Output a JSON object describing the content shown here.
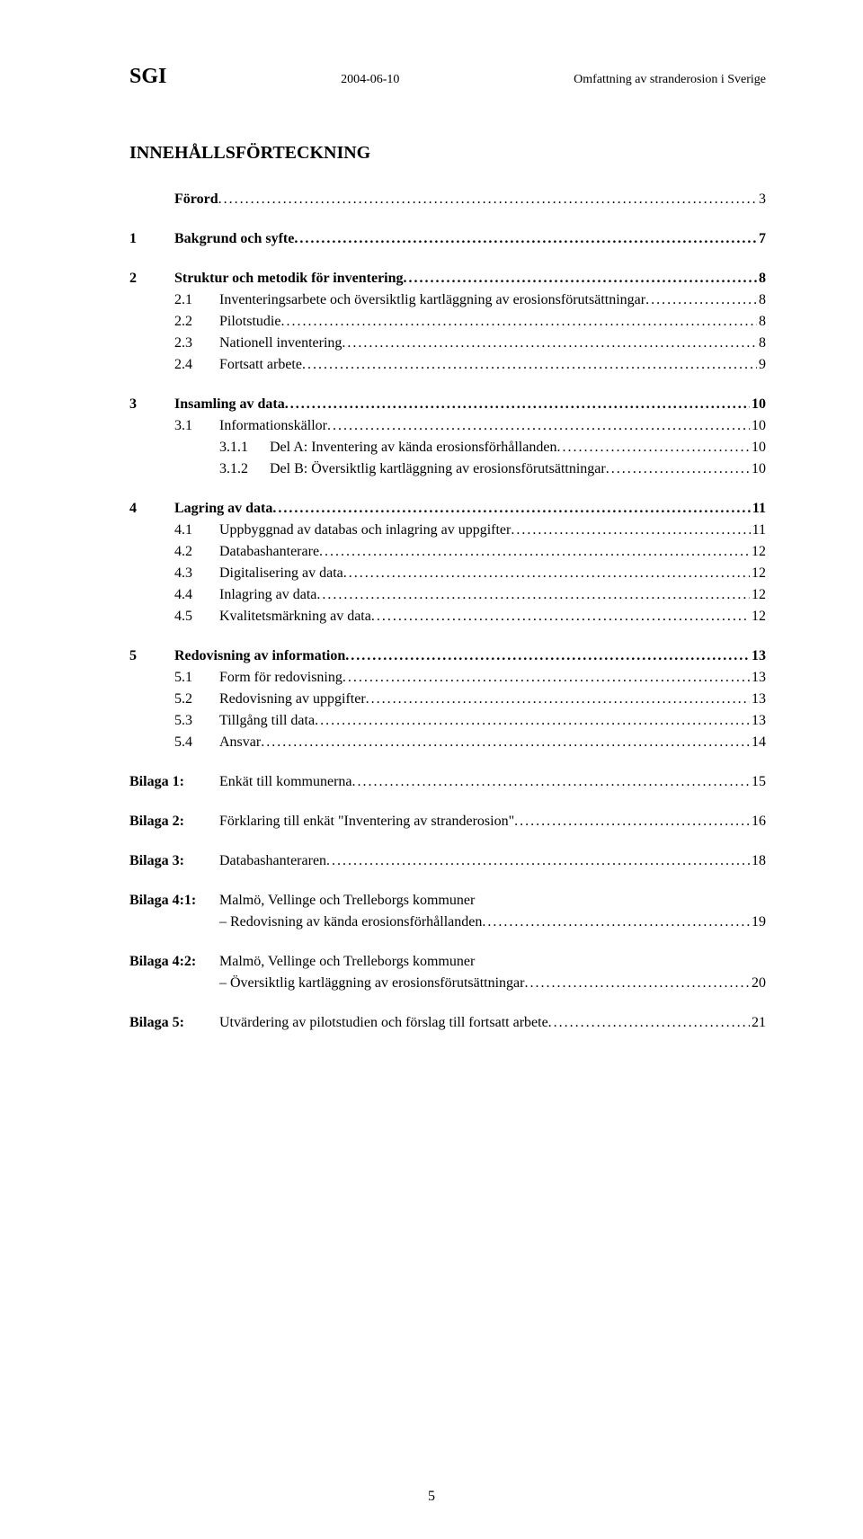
{
  "header": {
    "left": "SGI",
    "mid": "2004-06-10",
    "right": "Omfattning av stranderosion i Sverige"
  },
  "title": "INNEHÅLLSFÖRTECKNING",
  "toc": {
    "forord": {
      "label": "Förord",
      "page": "3"
    },
    "s1": {
      "num": "1",
      "label": "Bakgrund och syfte",
      "page": "7"
    },
    "s2": {
      "num": "2",
      "label": "Struktur och metodik för inventering",
      "page": "8",
      "sub": [
        {
          "num": "2.1",
          "label": "Inventeringsarbete och översiktlig kartläggning av erosionsförutsättningar",
          "page": "8"
        },
        {
          "num": "2.2",
          "label": "Pilotstudie",
          "page": "8"
        },
        {
          "num": "2.3",
          "label": "Nationell inventering",
          "page": "8"
        },
        {
          "num": "2.4",
          "label": "Fortsatt arbete",
          "page": "9"
        }
      ]
    },
    "s3": {
      "num": "3",
      "label": "Insamling av data",
      "page": "10",
      "sub": [
        {
          "num": "3.1",
          "label": "Informationskällor",
          "page": "10",
          "subsub": [
            {
              "num": "3.1.1",
              "label": "Del A: Inventering av kända erosionsförhållanden",
              "page": "10"
            },
            {
              "num": "3.1.2",
              "label": "Del B: Översiktlig kartläggning av erosionsförutsättningar",
              "page": "10"
            }
          ]
        }
      ]
    },
    "s4": {
      "num": "4",
      "label": "Lagring av data",
      "page": "11",
      "sub": [
        {
          "num": "4.1",
          "label": "Uppbyggnad av databas och inlagring av uppgifter",
          "page": "11"
        },
        {
          "num": "4.2",
          "label": "Databashanterare",
          "page": "12"
        },
        {
          "num": "4.3",
          "label": "Digitalisering av data",
          "page": "12"
        },
        {
          "num": "4.4",
          "label": "Inlagring av data",
          "page": "12"
        },
        {
          "num": "4.5",
          "label": "Kvalitetsmärkning av data",
          "page": "12"
        }
      ]
    },
    "s5": {
      "num": "5",
      "label": "Redovisning av information",
      "page": "13",
      "sub": [
        {
          "num": "5.1",
          "label": "Form för redovisning",
          "page": "13"
        },
        {
          "num": "5.2",
          "label": "Redovisning av uppgifter",
          "page": "13"
        },
        {
          "num": "5.3",
          "label": "Tillgång till data",
          "page": "13"
        },
        {
          "num": "5.4",
          "label": "Ansvar",
          "page": "14"
        }
      ]
    },
    "bilagor": [
      {
        "label": "Bilaga 1:",
        "text": "Enkät till kommunerna",
        "page": "15"
      },
      {
        "label": "Bilaga 2:",
        "text": "Förklaring till enkät \"Inventering av stranderosion\"",
        "page": "16"
      },
      {
        "label": "Bilaga 3:",
        "text": "Databashanteraren",
        "page": "18"
      }
    ],
    "bilaga41": {
      "label": "Bilaga 4:1:",
      "text1": "Malmö, Vellinge och Trelleborgs kommuner",
      "text2": "– Redovisning av kända erosionsförhållanden",
      "page": "19"
    },
    "bilaga42": {
      "label": "Bilaga 4:2:",
      "text1": "Malmö, Vellinge och Trelleborgs kommuner",
      "text2": "– Översiktlig kartläggning av erosionsförutsättningar",
      "page": "20"
    },
    "bilaga5": {
      "label": "Bilaga 5:",
      "text": "Utvärdering av pilotstudien och förslag till fortsatt arbete",
      "page": "21"
    }
  },
  "footer_page": "5",
  "style": {
    "font_family": "Times New Roman",
    "background": "#ffffff",
    "text_color": "#000000",
    "header_left_fontsize": 24,
    "header_small_fontsize": 14,
    "title_fontsize": 20,
    "body_fontsize": 16
  }
}
